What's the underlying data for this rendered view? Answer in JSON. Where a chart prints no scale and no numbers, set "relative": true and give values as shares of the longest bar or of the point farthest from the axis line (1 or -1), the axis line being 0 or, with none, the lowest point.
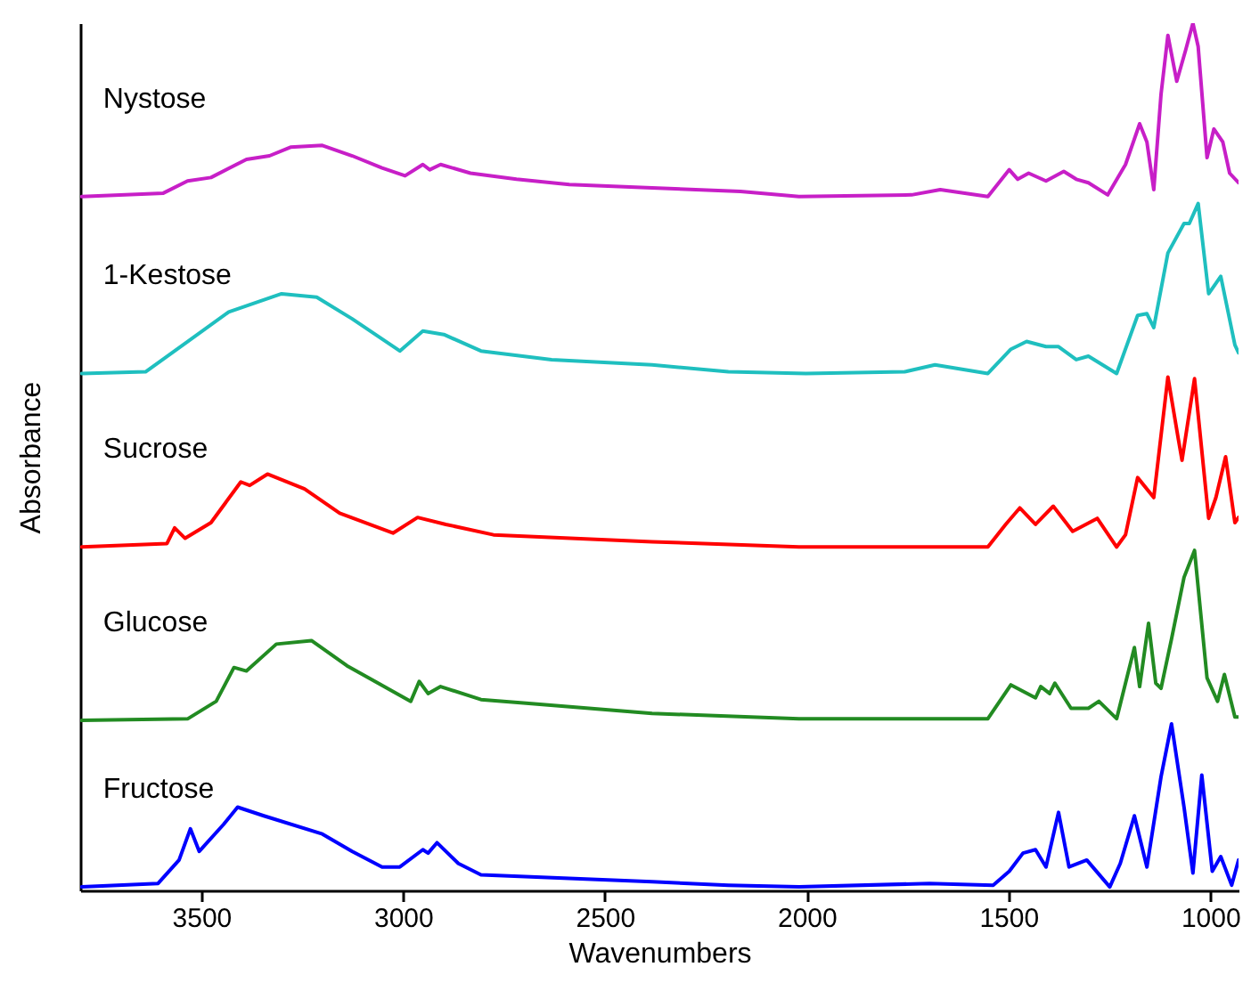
{
  "chart_data": {
    "type": "line",
    "xlabel": "Wavenumbers",
    "ylabel": "Absorbance",
    "relative": true,
    "xlim": [
      3800,
      930
    ],
    "xticks": [
      3500,
      3000,
      2500,
      2000,
      1500,
      1000
    ],
    "grid": false,
    "marker": "none",
    "series": [
      {
        "name": "Nystose",
        "color": "#c71fc7",
        "x": [
          3796,
          3594,
          3534,
          3476,
          3388,
          3331,
          3279,
          3200,
          3126,
          3052,
          2995,
          2951,
          2934,
          2907,
          2833,
          2719,
          2588,
          2383,
          2164,
          2019,
          1740,
          1669,
          1551,
          1498,
          1477,
          1450,
          1407,
          1363,
          1332,
          1302,
          1254,
          1210,
          1175,
          1157,
          1140,
          1122,
          1105,
          1083,
          1061,
          1043,
          1030,
          1008,
          991,
          969,
          952,
          930
        ],
        "values": [
          0.8,
          0.804,
          0.818,
          0.822,
          0.843,
          0.847,
          0.857,
          0.859,
          0.847,
          0.833,
          0.824,
          0.837,
          0.831,
          0.837,
          0.827,
          0.82,
          0.814,
          0.81,
          0.806,
          0.8,
          0.802,
          0.808,
          0.8,
          0.831,
          0.82,
          0.827,
          0.818,
          0.829,
          0.82,
          0.816,
          0.802,
          0.837,
          0.884,
          0.863,
          0.808,
          0.918,
          0.986,
          0.933,
          0.969,
          1.0,
          0.973,
          0.845,
          0.878,
          0.863,
          0.827,
          0.816
        ]
      },
      {
        "name": "1-Kestose",
        "color": "#1fbfbf",
        "x": [
          3796,
          3638,
          3533,
          3432,
          3301,
          3214,
          3126,
          3008,
          2951,
          2899,
          2807,
          2632,
          2383,
          2194,
          2002,
          1757,
          1682,
          1551,
          1494,
          1455,
          1407,
          1376,
          1332,
          1302,
          1232,
          1180,
          1157,
          1140,
          1105,
          1065,
          1052,
          1030,
          1004,
          974,
          939,
          930
        ],
        "values": [
          0.596,
          0.598,
          0.633,
          0.667,
          0.688,
          0.684,
          0.659,
          0.622,
          0.645,
          0.641,
          0.622,
          0.612,
          0.606,
          0.598,
          0.596,
          0.598,
          0.606,
          0.596,
          0.624,
          0.633,
          0.627,
          0.627,
          0.612,
          0.616,
          0.596,
          0.663,
          0.665,
          0.649,
          0.735,
          0.769,
          0.769,
          0.792,
          0.688,
          0.708,
          0.629,
          0.62
        ]
      },
      {
        "name": "Sucrose",
        "color": "#ff0000",
        "x": [
          3796,
          3585,
          3566,
          3540,
          3476,
          3402,
          3380,
          3336,
          3244,
          3157,
          3025,
          2964,
          2894,
          2776,
          2383,
          2019,
          1551,
          1507,
          1472,
          1433,
          1389,
          1341,
          1280,
          1232,
          1210,
          1180,
          1140,
          1105,
          1079,
          1070,
          1039,
          1004,
          986,
          962,
          939,
          930
        ],
        "values": [
          0.396,
          0.4,
          0.418,
          0.406,
          0.424,
          0.471,
          0.467,
          0.48,
          0.463,
          0.435,
          0.412,
          0.43,
          0.422,
          0.41,
          0.402,
          0.396,
          0.396,
          0.422,
          0.441,
          0.422,
          0.443,
          0.414,
          0.429,
          0.396,
          0.41,
          0.476,
          0.453,
          0.592,
          0.52,
          0.496,
          0.59,
          0.429,
          0.453,
          0.5,
          0.424,
          0.43
        ]
      },
      {
        "name": "Glucose",
        "color": "#228b22",
        "x": [
          3796,
          3533,
          3463,
          3419,
          3388,
          3314,
          3227,
          3139,
          2981,
          2960,
          2938,
          2907,
          2807,
          2702,
          2383,
          2019,
          1551,
          1494,
          1433,
          1420,
          1398,
          1385,
          1345,
          1302,
          1276,
          1232,
          1188,
          1175,
          1153,
          1135,
          1122,
          1096,
          1065,
          1039,
          1008,
          982,
          965,
          939,
          930
        ],
        "values": [
          0.196,
          0.198,
          0.218,
          0.257,
          0.253,
          0.284,
          0.288,
          0.259,
          0.218,
          0.241,
          0.227,
          0.235,
          0.22,
          0.216,
          0.204,
          0.198,
          0.198,
          0.237,
          0.222,
          0.235,
          0.227,
          0.239,
          0.21,
          0.21,
          0.218,
          0.198,
          0.28,
          0.235,
          0.308,
          0.239,
          0.233,
          0.29,
          0.361,
          0.392,
          0.245,
          0.218,
          0.249,
          0.2,
          0.2
        ]
      },
      {
        "name": "Fructose",
        "color": "#0000ff",
        "x": [
          3796,
          3607,
          3555,
          3527,
          3505,
          3445,
          3410,
          3345,
          3200,
          3126,
          3052,
          3008,
          2951,
          2938,
          2916,
          2863,
          2807,
          2383,
          2194,
          2019,
          1696,
          1538,
          1498,
          1464,
          1433,
          1407,
          1376,
          1350,
          1306,
          1249,
          1223,
          1188,
          1157,
          1122,
          1096,
          1065,
          1043,
          1021,
          995,
          974,
          947,
          930
        ],
        "values": [
          0.004,
          0.008,
          0.035,
          0.071,
          0.045,
          0.076,
          0.096,
          0.086,
          0.065,
          0.045,
          0.027,
          0.027,
          0.047,
          0.043,
          0.055,
          0.031,
          0.018,
          0.01,
          0.006,
          0.004,
          0.008,
          0.006,
          0.022,
          0.043,
          0.047,
          0.027,
          0.09,
          0.027,
          0.035,
          0.004,
          0.031,
          0.086,
          0.027,
          0.131,
          0.192,
          0.096,
          0.02,
          0.133,
          0.022,
          0.039,
          0.006,
          0.035
        ]
      }
    ]
  }
}
